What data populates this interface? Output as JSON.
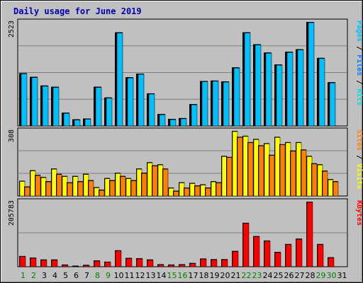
{
  "title": "Daily usage for June 2019",
  "colors": {
    "frame_bg": "#c0c0c0",
    "plot_bg": "#c0c0c0",
    "title": "#0000b0",
    "day_weekday": "#000000",
    "day_weekend": "#008000",
    "hits": "#00e0e0",
    "files": "#0080ff",
    "pages": "#00c0ff",
    "visits": "#ffff00",
    "sites": "#ff8000",
    "kbytes": "#ff0000"
  },
  "chart_data": {
    "type": "bar",
    "title": "Daily usage for June 2019",
    "categories": [
      "1",
      "2",
      "3",
      "4",
      "5",
      "6",
      "7",
      "8",
      "9",
      "10",
      "11",
      "12",
      "13",
      "14",
      "15",
      "16",
      "17",
      "18",
      "19",
      "20",
      "21",
      "22",
      "23",
      "24",
      "25",
      "26",
      "27",
      "28",
      "29",
      "30",
      "31"
    ],
    "weekend_days": [
      "1",
      "2",
      "8",
      "9",
      "15",
      "16",
      "22",
      "23",
      "29",
      "30"
    ],
    "panels": [
      {
        "ymax_label": "2523",
        "ylim": [
          0,
          2523
        ],
        "side_label_parts": [
          {
            "text": "Pages",
            "color": "#00c0ff"
          },
          {
            "text": " / ",
            "color": "#000000"
          },
          {
            "text": "Files",
            "color": "#0080ff"
          },
          {
            "text": " / ",
            "color": "#000000"
          },
          {
            "text": "Hits",
            "color": "#00e0e0"
          }
        ],
        "series": [
          {
            "name": "Hits",
            "values": [
              1280,
              1190,
              980,
              950,
              320,
              160,
              180,
              950,
              690,
              2270,
              1180,
              1270,
              790,
              290,
              170,
              190,
              530,
              1090,
              1100,
              1080,
              1420,
              2270,
              1980,
              1780,
              1490,
              1800,
              1860,
              2523,
              1650,
              1060,
              0
            ]
          },
          {
            "name": "Files",
            "values": [
              1280,
              1190,
              980,
              950,
              320,
              160,
              180,
              950,
              690,
              2270,
              1180,
              1270,
              790,
              290,
              170,
              190,
              530,
              1090,
              1100,
              1080,
              1420,
              2270,
              1980,
              1780,
              1490,
              1800,
              1860,
              2523,
              1650,
              1060,
              0
            ]
          },
          {
            "name": "Pages",
            "values": [
              1280,
              1190,
              980,
              950,
              320,
              160,
              180,
              950,
              690,
              2270,
              1180,
              1270,
              790,
              290,
              170,
              190,
              530,
              1090,
              1100,
              1080,
              1420,
              2270,
              1980,
              1780,
              1490,
              1800,
              1860,
              2523,
              1650,
              1060,
              0
            ]
          }
        ]
      },
      {
        "ymax_label": "308",
        "ylim": [
          0,
          308
        ],
        "side_label_parts": [
          {
            "text": "Sites",
            "color": "#ff8000"
          },
          {
            "text": " / ",
            "color": "#000000"
          },
          {
            "text": "Visits",
            "color": "#ffff00"
          }
        ],
        "series": [
          {
            "name": "Visits",
            "values": [
              72,
              122,
              90,
              130,
              95,
              95,
              105,
              42,
              85,
              110,
              85,
              130,
              160,
              150,
              40,
              65,
              62,
              55,
              70,
              190,
              308,
              285,
              270,
              250,
              280,
              255,
              255,
              190,
              150,
              80,
              0
            ]
          },
          {
            "name": "Sites",
            "values": [
              45,
              100,
              70,
              105,
              65,
              70,
              75,
              30,
              75,
              95,
              75,
              110,
              145,
              130,
              25,
              40,
              50,
              40,
              65,
              185,
              280,
              255,
              240,
              195,
              245,
              215,
              220,
              155,
              120,
              70,
              0
            ]
          }
        ]
      },
      {
        "ymax_label": "205783",
        "ylim": [
          0,
          205783
        ],
        "side_label_parts": [
          {
            "text": "KBytes",
            "color": "#ff0000"
          }
        ],
        "series": [
          {
            "name": "KBytes",
            "values": [
              34000,
              29000,
              23000,
              23000,
              7000,
              3500,
              6000,
              20000,
              16000,
              52000,
              28000,
              27000,
              23000,
              8000,
              7000,
              8000,
              12000,
              26000,
              24000,
              24000,
              50000,
              139000,
              97000,
              83000,
              47000,
              72000,
              89000,
              205783,
              72000,
              30000,
              0
            ]
          }
        ]
      }
    ]
  }
}
